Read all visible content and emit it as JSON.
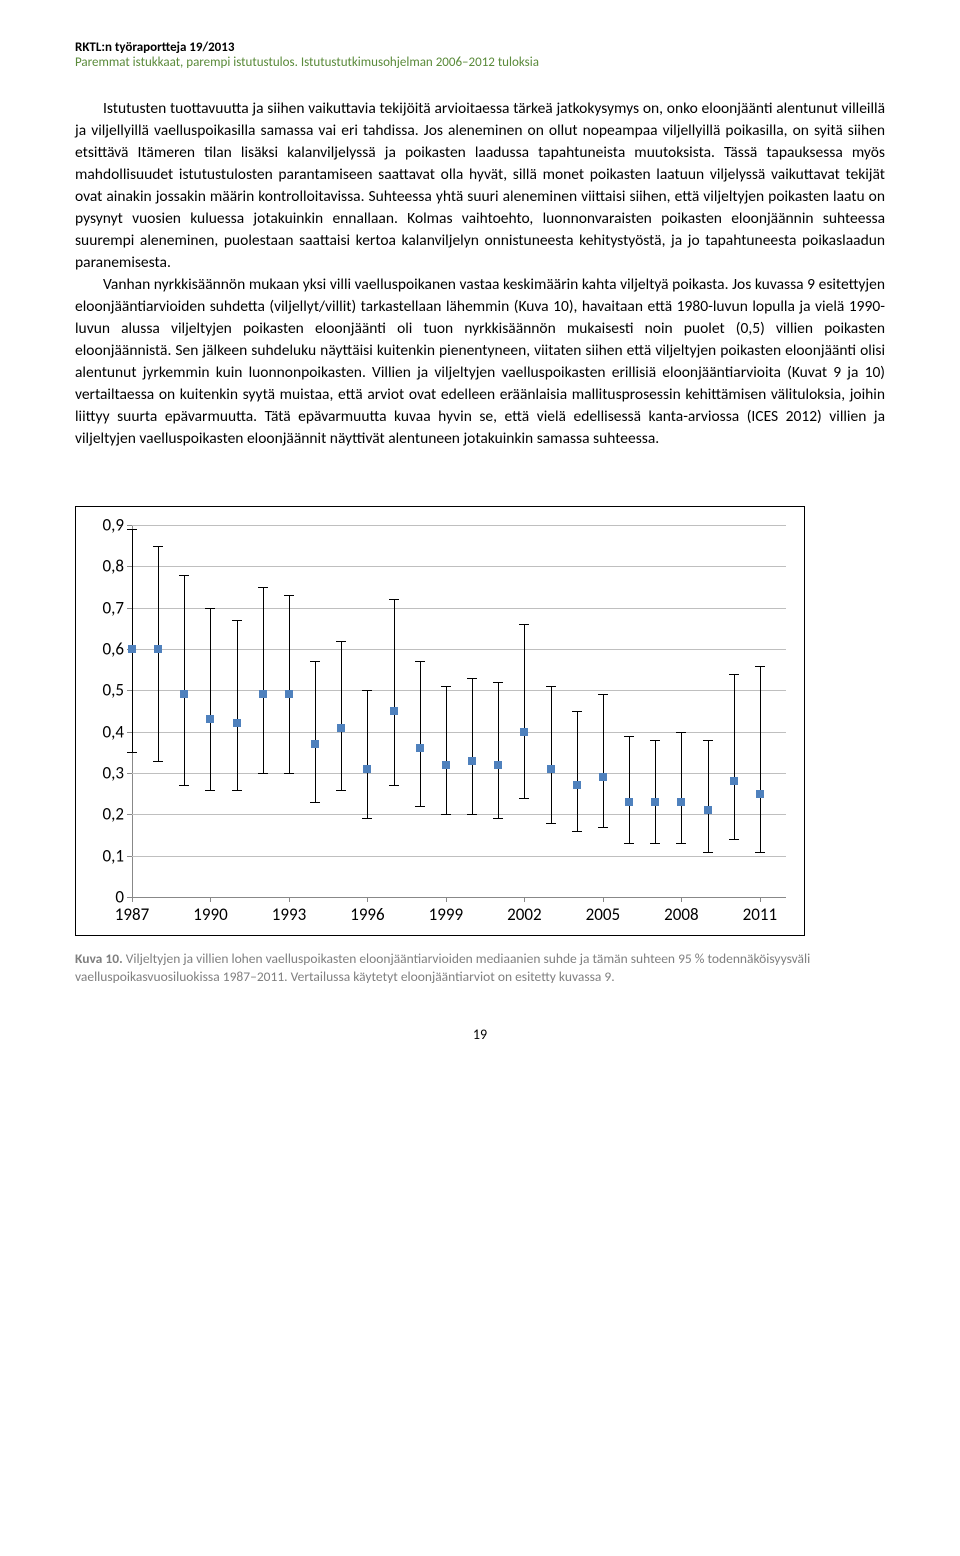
{
  "header": {
    "line1": "RKTL:n työraportteja 19/2013",
    "line2": "Paremmat istukkaat, parempi istutustulos. Istutustutkimusohjelman 2006–2012 tuloksia"
  },
  "body": {
    "p1": "Istutusten tuottavuutta ja siihen vaikuttavia tekijöitä arvioitaessa tärkeä jatkokysymys on, onko eloonjäänti alentunut villeillä ja viljellyillä vaelluspoikasilla samassa vai eri tahdissa. Jos aleneminen on ollut nopeampaa viljellyillä poikasilla, on syitä siihen etsittävä Itämeren tilan lisäksi kalanviljelyssä ja poikasten laadussa tapahtuneista muutoksista. Tässä tapauksessa myös mahdollisuudet istutustulosten parantamiseen saattavat olla hyvät, sillä monet poikasten laatuun viljelyssä vaikuttavat tekijät ovat ainakin jossakin määrin kontrolloitavissa. Suhteessa yhtä suuri aleneminen viittaisi siihen, että viljeltyjen poikasten laatu on pysynyt vuosien kuluessa jotakuinkin ennallaan. Kolmas vaihtoehto, luonnonvaraisten poikasten eloonjäännin suhteessa suurempi aleneminen, puolestaan saattaisi kertoa kalanviljelyn onnistuneesta kehitystyöstä, ja jo tapahtuneesta poikaslaadun paranemisesta.",
    "p2": "Vanhan nyrkkisäännön mukaan yksi villi vaelluspoikanen vastaa keskimäärin kahta viljeltyä poikasta. Jos kuvassa 9 esitettyjen eloonjääntiarvioiden suhdetta (viljellyt/villit) tarkastellaan lähemmin (Kuva 10), havaitaan että 1980-luvun lopulla ja vielä 1990-luvun alussa viljeltyjen poikasten eloonjäänti oli tuon nyrkkisäännön mukaisesti noin puolet (0,5) villien poikasten eloonjäännistä. Sen jälkeen suhdeluku näyttäisi kuitenkin pienentyneen, viitaten siihen että viljeltyjen poikasten eloonjäänti olisi alentunut jyrkemmin kuin luonnonpoikasten. Villien ja viljeltyjen vaelluspoikasten erillisiä eloonjääntiarvioita (Kuvat 9 ja 10) vertailtaessa on kuitenkin syytä muistaa, että arviot ovat edelleen eräänlaisia mallitusprosessin kehittämisen välituloksia, joihin liittyy suurta epävarmuutta. Tätä epävarmuutta kuvaa hyvin se, että vielä edellisessä kanta-arviossa (ICES 2012) villien ja viljeltyjen vaelluspoikasten eloonjäännit näyttivät alentuneen jotakuinkin samassa suhteessa."
  },
  "chart": {
    "type": "scatter-errorbar",
    "ylim": [
      0,
      0.9
    ],
    "ytick_step": 0.1,
    "y_labels": [
      "0",
      "0,1",
      "0,2",
      "0,3",
      "0,4",
      "0,5",
      "0,6",
      "0,7",
      "0,8",
      "0,9"
    ],
    "xlim": [
      1987,
      2012
    ],
    "x_tick_labels": [
      1987,
      1990,
      1993,
      1996,
      1999,
      2002,
      2005,
      2008,
      2011
    ],
    "grid_color": "#bfbfbf",
    "axis_color": "#888888",
    "background_color": "#ffffff",
    "marker_color": "#4f81bd",
    "errorbar_color": "#000000",
    "marker_size": 8,
    "data": [
      {
        "x": 1987,
        "median": 0.6,
        "lo": 0.35,
        "hi": 0.89
      },
      {
        "x": 1988,
        "median": 0.6,
        "lo": 0.33,
        "hi": 0.85
      },
      {
        "x": 1989,
        "median": 0.49,
        "lo": 0.27,
        "hi": 0.78
      },
      {
        "x": 1990,
        "median": 0.43,
        "lo": 0.26,
        "hi": 0.7
      },
      {
        "x": 1991,
        "median": 0.42,
        "lo": 0.26,
        "hi": 0.67
      },
      {
        "x": 1992,
        "median": 0.49,
        "lo": 0.3,
        "hi": 0.75
      },
      {
        "x": 1993,
        "median": 0.49,
        "lo": 0.3,
        "hi": 0.73
      },
      {
        "x": 1994,
        "median": 0.37,
        "lo": 0.23,
        "hi": 0.57
      },
      {
        "x": 1995,
        "median": 0.41,
        "lo": 0.26,
        "hi": 0.62
      },
      {
        "x": 1996,
        "median": 0.31,
        "lo": 0.19,
        "hi": 0.5
      },
      {
        "x": 1997,
        "median": 0.45,
        "lo": 0.27,
        "hi": 0.72
      },
      {
        "x": 1998,
        "median": 0.36,
        "lo": 0.22,
        "hi": 0.57
      },
      {
        "x": 1999,
        "median": 0.32,
        "lo": 0.2,
        "hi": 0.51
      },
      {
        "x": 2000,
        "median": 0.33,
        "lo": 0.2,
        "hi": 0.53
      },
      {
        "x": 2001,
        "median": 0.32,
        "lo": 0.19,
        "hi": 0.52
      },
      {
        "x": 2002,
        "median": 0.4,
        "lo": 0.24,
        "hi": 0.66
      },
      {
        "x": 2003,
        "median": 0.31,
        "lo": 0.18,
        "hi": 0.51
      },
      {
        "x": 2004,
        "median": 0.27,
        "lo": 0.16,
        "hi": 0.45
      },
      {
        "x": 2005,
        "median": 0.29,
        "lo": 0.17,
        "hi": 0.49
      },
      {
        "x": 2006,
        "median": 0.23,
        "lo": 0.13,
        "hi": 0.39
      },
      {
        "x": 2007,
        "median": 0.23,
        "lo": 0.13,
        "hi": 0.38
      },
      {
        "x": 2008,
        "median": 0.23,
        "lo": 0.13,
        "hi": 0.4
      },
      {
        "x": 2009,
        "median": 0.21,
        "lo": 0.11,
        "hi": 0.38
      },
      {
        "x": 2010,
        "median": 0.28,
        "lo": 0.14,
        "hi": 0.54
      },
      {
        "x": 2011,
        "median": 0.25,
        "lo": 0.11,
        "hi": 0.56
      }
    ]
  },
  "caption": {
    "label": "Kuva 10.",
    "text": " Viljeltyjen ja villien lohen vaelluspoikasten eloonjääntiarvioiden mediaanien suhde ja tämän suhteen 95 % todennäköisyysväli vaelluspoikasvuosiluokissa 1987–2011. Vertailussa käytetyt eloonjääntiarviot on esitetty kuvassa 9."
  },
  "page_number": "19"
}
